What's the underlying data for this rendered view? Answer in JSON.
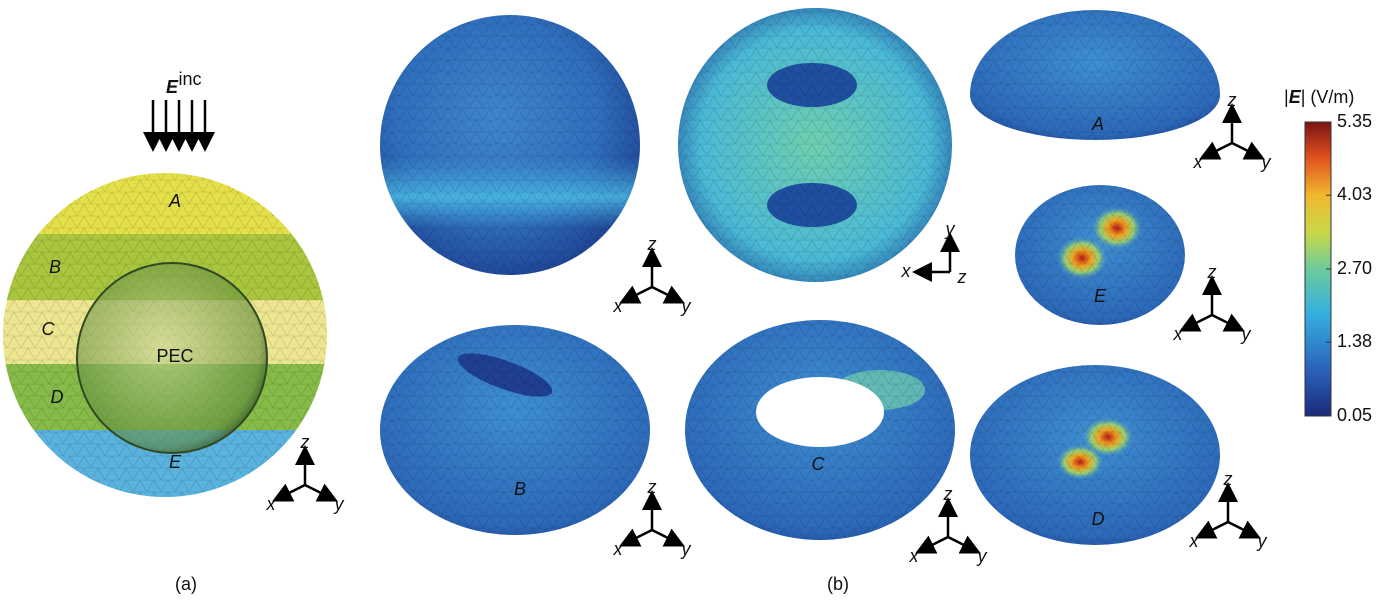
{
  "panel_a": {
    "incident_symbol": "E",
    "incident_sup": "inc",
    "regions": [
      "A",
      "B",
      "C",
      "D",
      "E"
    ],
    "core_label": "PEC",
    "axes": [
      "z",
      "x",
      "y"
    ],
    "caption": "(a)"
  },
  "panel_b": {
    "caption": "(b)",
    "views": [
      {
        "axes": [
          "z",
          "x",
          "y"
        ]
      },
      {
        "axes": [
          "y",
          "x",
          "z"
        ]
      },
      {
        "label": "A",
        "axes": [
          "z",
          "x",
          "y"
        ]
      },
      {
        "label": "E",
        "axes": [
          "z",
          "x",
          "y"
        ]
      },
      {
        "label": "B",
        "axes": [
          "z",
          "x",
          "y"
        ]
      },
      {
        "label": "C",
        "axes": [
          "z",
          "x",
          "y"
        ]
      },
      {
        "label": "D",
        "axes": [
          "z",
          "x",
          "y"
        ]
      }
    ]
  },
  "colorbar": {
    "title_open": "|",
    "title_symbol": "E",
    "title_close": "| (V/m)",
    "lim": [
      0.05,
      5.35
    ],
    "ticks": [
      5.35,
      4.03,
      {
        "value": 2.7,
        "label": "2.70"
      },
      1.38,
      0.05
    ]
  }
}
